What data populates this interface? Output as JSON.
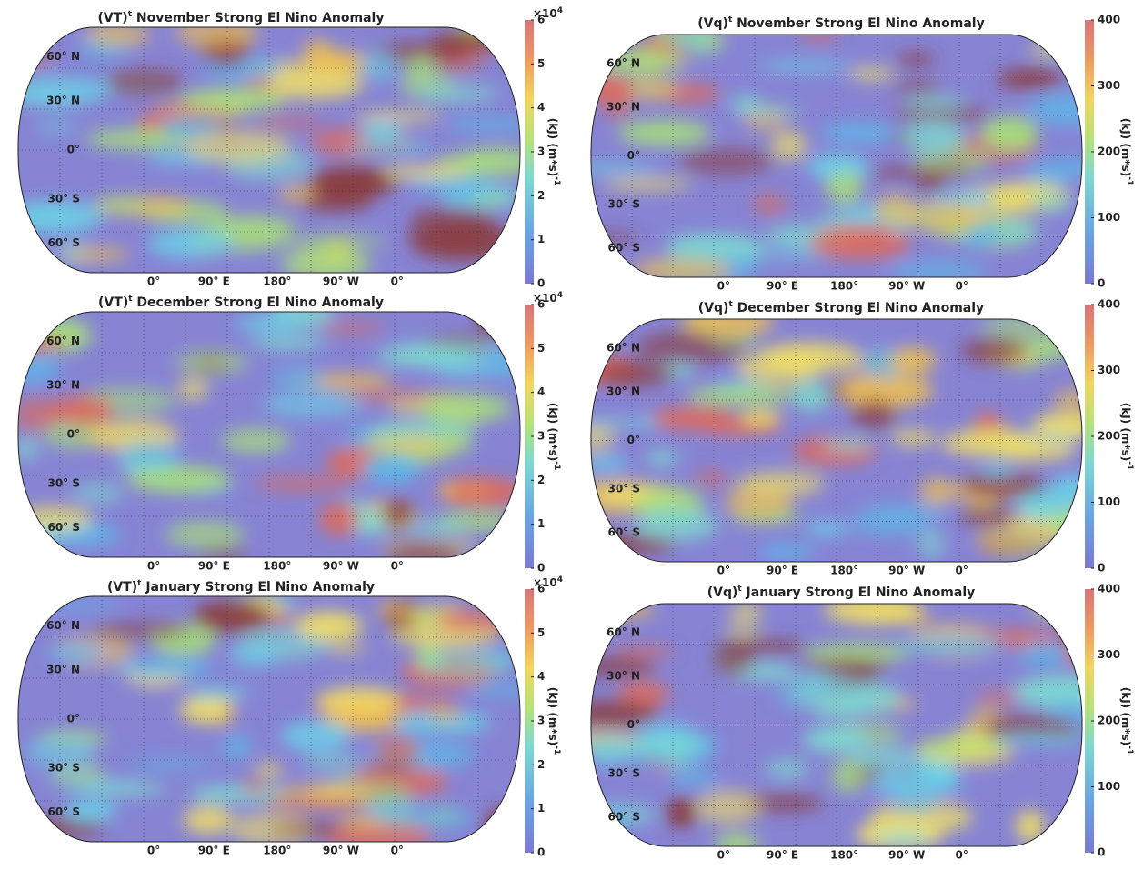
{
  "lat_labels": [
    "60° N",
    "30° N",
    "0°",
    "30° S",
    "60° S"
  ],
  "lon_labels": [
    "0°",
    "90° E",
    "180°",
    "90° W",
    "0°"
  ],
  "panels": [
    {
      "title": {
        "main": "(VT)",
        "sup": "t",
        "rest": " November Strong El Nino Anomaly"
      },
      "colorbar": {
        "clim": [
          0,
          6
        ],
        "ticks": [
          0,
          1,
          2,
          3,
          4,
          5,
          6
        ],
        "multiplier": {
          "base": "×10",
          "exp": "4"
        },
        "label": {
          "main": "(kJ) (m*s)",
          "sup": "-1"
        }
      }
    },
    {
      "title": {
        "main": "(Vq)",
        "sup": "t",
        "rest": " November Strong El Nino Anomaly"
      },
      "colorbar": {
        "clim": [
          0,
          400
        ],
        "ticks": [
          0,
          100,
          200,
          300,
          400
        ],
        "label": {
          "main": "(kJ) (m*s)",
          "sup": "-1"
        }
      }
    },
    {
      "title": {
        "main": "(VT)",
        "sup": "t",
        "rest": " December Strong El Nino Anomaly"
      },
      "colorbar": {
        "clim": [
          0,
          6
        ],
        "ticks": [
          0,
          1,
          2,
          3,
          4,
          5,
          6
        ],
        "multiplier": {
          "base": "×10",
          "exp": "4"
        },
        "label": {
          "main": "(kJ) (m*s)",
          "sup": "-1"
        }
      }
    },
    {
      "title": {
        "main": "(Vq)",
        "sup": "t",
        "rest": " December Strong El Nino Anomaly"
      },
      "colorbar": {
        "clim": [
          0,
          400
        ],
        "ticks": [
          0,
          100,
          200,
          300,
          400
        ],
        "label": {
          "main": "(kJ) (m*s)",
          "sup": "-1"
        }
      }
    },
    {
      "title": {
        "main": "(VT)",
        "sup": "t",
        "rest": " January Strong El Nino Anomaly"
      },
      "colorbar": {
        "clim": [
          0,
          6
        ],
        "ticks": [
          0,
          1,
          2,
          3,
          4,
          5,
          6
        ],
        "multiplier": {
          "base": "×10",
          "exp": "4"
        },
        "label": {
          "main": "(kJ) (m*s)",
          "sup": "-1"
        }
      }
    },
    {
      "title": {
        "main": "(Vq)",
        "sup": "t",
        "rest": " January Strong El Nino Anomaly"
      },
      "colorbar": {
        "clim": [
          0,
          400
        ],
        "ticks": [
          0,
          100,
          200,
          300,
          400
        ],
        "label": {
          "main": "(kJ) (m*s)",
          "sup": "-1"
        }
      }
    }
  ]
}
